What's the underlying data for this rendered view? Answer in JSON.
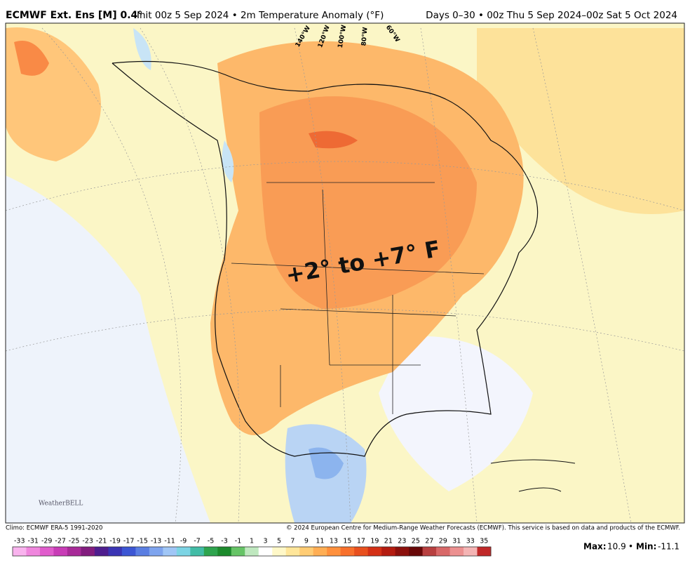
{
  "header": {
    "title": "ECMWF Ext. Ens [M] 0.4°",
    "subtitle": "Init 00z 5 Sep 2024 • 2m Temperature Anomaly (°F)",
    "period": "Days 0–30 • 00z Thu 5 Sep 2024–00z Sat 5 Oct 2024"
  },
  "map": {
    "annotation": "+2° to +7° F",
    "longitudes": [
      "140°W",
      "120°W",
      "100°W",
      "80°W",
      "60°W"
    ],
    "logo": "WeatherBELL"
  },
  "footer": {
    "climo": "Climo: ECMWF ERA-5 1991-2020",
    "copyright": "© 2024 European Centre for Medium-Range Weather Forecasts (ECMWF). This service is based on data and products of the ECMWF."
  },
  "colorbar": {
    "labels": [
      -33,
      -31,
      -29,
      -27,
      -25,
      -23,
      -21,
      -19,
      -17,
      -15,
      -13,
      -11,
      -9,
      -7,
      -5,
      -3,
      -1,
      1,
      3,
      5,
      7,
      9,
      11,
      13,
      15,
      17,
      19,
      21,
      23,
      25,
      27,
      29,
      31,
      33,
      35
    ],
    "colors": [
      "#f9b3ee",
      "#ef86dd",
      "#e05ccc",
      "#c83cb6",
      "#a82a98",
      "#821c7e",
      "#4e1d8e",
      "#3a34b4",
      "#3c56d4",
      "#5a7ee2",
      "#7ea4ee",
      "#a0c6f6",
      "#7cd4e4",
      "#42bca6",
      "#2ea44e",
      "#1c8a2c",
      "#66c466",
      "#bfe8bf",
      "#ffffff",
      "#fff8c8",
      "#ffe69a",
      "#ffcc74",
      "#ffae54",
      "#ff903c",
      "#f8702c",
      "#e8501e",
      "#d43016",
      "#b41c10",
      "#8c100c",
      "#680808",
      "#b84040",
      "#d86868",
      "#ec9090",
      "#f4b4b4",
      "#c02828"
    ]
  },
  "stats": {
    "max_label": "Max:",
    "max": 10.9,
    "separator": "•",
    "min_label": "Min:",
    "min": -11.1
  }
}
